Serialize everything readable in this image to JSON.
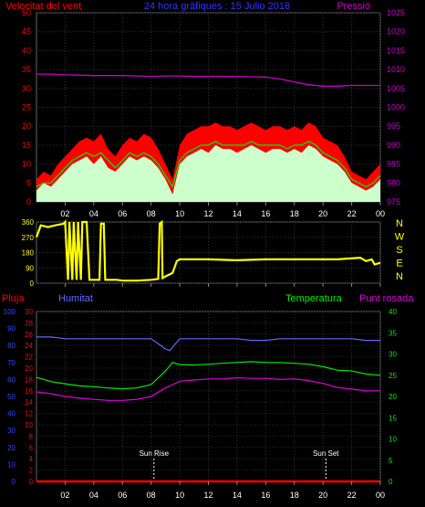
{
  "chart_data": [
    {
      "type": "line",
      "title": "24 hora gràfiques : 15 Julio 2018",
      "left_label": "Velocitat del vent",
      "right_label": "Pressió",
      "x_ticks": [
        "02",
        "04",
        "06",
        "08",
        "10",
        "12",
        "14",
        "16",
        "18",
        "20",
        "22",
        "00"
      ],
      "xlim": [
        0,
        24
      ],
      "ylim_left": [
        0,
        50
      ],
      "ylim_right": [
        975,
        1025
      ],
      "yticks_left": [
        0,
        5,
        10,
        15,
        20,
        25,
        30,
        35,
        40,
        45,
        50
      ],
      "yticks_right": [
        975,
        980,
        985,
        990,
        995,
        1000,
        1005,
        1010,
        1015,
        1020,
        1025
      ],
      "colors": {
        "gust": "#ff0000",
        "average": "#00ee00",
        "speed": "#ccffcc",
        "pressure": "#cc00cc",
        "left_axis": "#ff0000",
        "right_axis": "#cc00cc",
        "title": "#3333ff"
      },
      "series": [
        {
          "axis": "left",
          "x": [
            0,
            0.5,
            1,
            1.5,
            2,
            2.5,
            3,
            3.5,
            4,
            4.5,
            5,
            5.5,
            6,
            6.5,
            7,
            7.5,
            8,
            8.5,
            9,
            9.5,
            10,
            10.5,
            11,
            11.5,
            12,
            12.5,
            13,
            13.5,
            14,
            14.5,
            15,
            15.5,
            16,
            16.5,
            17,
            17.5,
            18,
            18.5,
            19,
            19.5,
            20,
            20.5,
            21,
            21.5,
            22,
            22.5,
            23,
            23.5,
            24
          ],
          "values": [
            6,
            8,
            7,
            10,
            12,
            14,
            16,
            17,
            16,
            18,
            14,
            12,
            15,
            17,
            16,
            18,
            17,
            14,
            10,
            6,
            15,
            18,
            19,
            20,
            20,
            21,
            20,
            20,
            19,
            20,
            21,
            20,
            19,
            20,
            20,
            19,
            20,
            19,
            21,
            20,
            17,
            16,
            15,
            12,
            8,
            7,
            6,
            8,
            10
          ]
        },
        {
          "axis": "left",
          "x": [
            0,
            0.5,
            1,
            1.5,
            2,
            2.5,
            3,
            3.5,
            4,
            4.5,
            5,
            5.5,
            6,
            6.5,
            7,
            7.5,
            8,
            8.5,
            9,
            9.5,
            10,
            10.5,
            11,
            11.5,
            12,
            12.5,
            13,
            13.5,
            14,
            14.5,
            15,
            15.5,
            16,
            16.5,
            17,
            17.5,
            18,
            18.5,
            19,
            19.5,
            20,
            20.5,
            21,
            21.5,
            22,
            22.5,
            23,
            23.5,
            24
          ],
          "values": [
            4,
            5,
            5,
            7,
            9,
            11,
            12,
            13,
            12,
            13,
            11,
            9,
            11,
            13,
            12,
            13,
            12,
            10,
            7,
            4,
            11,
            13,
            14,
            15,
            15,
            16,
            15,
            15,
            15,
            15,
            16,
            15,
            15,
            15,
            15,
            14,
            15,
            15,
            16,
            15,
            13,
            12,
            11,
            9,
            6,
            5,
            4,
            5,
            7
          ]
        },
        {
          "axis": "left",
          "x": [
            0,
            0.5,
            1,
            1.5,
            2,
            2.5,
            3,
            3.5,
            4,
            4.5,
            5,
            5.5,
            6,
            6.5,
            7,
            7.5,
            8,
            8.5,
            9,
            9.5,
            10,
            10.5,
            11,
            11.5,
            12,
            12.5,
            13,
            13.5,
            14,
            14.5,
            15,
            15.5,
            16,
            16.5,
            17,
            17.5,
            18,
            18.5,
            19,
            19.5,
            20,
            20.5,
            21,
            21.5,
            22,
            22.5,
            23,
            23.5,
            24
          ],
          "values": [
            3,
            5,
            4,
            6,
            8,
            10,
            11,
            12,
            10,
            12,
            9,
            8,
            10,
            12,
            11,
            12,
            11,
            9,
            6,
            2,
            10,
            12,
            13,
            14,
            13,
            15,
            14,
            14,
            13,
            14,
            15,
            14,
            13,
            14,
            14,
            13,
            14,
            13,
            15,
            14,
            12,
            11,
            10,
            8,
            5,
            4,
            3,
            4,
            6
          ]
        },
        {
          "axis": "right",
          "x": [
            0,
            1,
            2,
            3,
            4,
            5,
            6,
            7,
            8,
            9,
            10,
            11,
            12,
            13,
            14,
            15,
            16,
            17,
            18,
            19,
            20,
            21,
            22,
            23,
            24
          ],
          "values": [
            1008.8,
            1008.8,
            1008.6,
            1008.5,
            1008.4,
            1008.4,
            1008.4,
            1008.3,
            1008.2,
            1008.3,
            1008.3,
            1008.2,
            1008.2,
            1008.2,
            1008.2,
            1008.1,
            1008.0,
            1007.5,
            1006.7,
            1006.0,
            1005.6,
            1005.6,
            1005.8,
            1005.8,
            1005.8
          ]
        }
      ]
    },
    {
      "type": "line",
      "title": "",
      "x_ticks": [
        "02",
        "04",
        "06",
        "08",
        "10",
        "12",
        "14",
        "16",
        "18",
        "20",
        "22",
        "00"
      ],
      "xlim": [
        0,
        24
      ],
      "ylim": [
        0,
        360
      ],
      "yticks": [
        0,
        90,
        180,
        270,
        360
      ],
      "compass_labels": [
        "N",
        "W",
        "S",
        "E",
        "N"
      ],
      "colors": {
        "direction": "#ffff00",
        "compass": "#ffff00",
        "axis": "#ffff00"
      },
      "series": [
        {
          "x": [
            0,
            0.3,
            0.8,
            1.3,
            1.9,
            2.0,
            2.2,
            2.3,
            2.5,
            2.6,
            2.8,
            2.9,
            3.1,
            3.2,
            3.5,
            3.7,
            3.9,
            4.4,
            4.5,
            4.7,
            4.8,
            5.0,
            5.6,
            6.0,
            7.0,
            8.0,
            8.5,
            8.6,
            8.75,
            8.8,
            9.0,
            9.5,
            9.8,
            10,
            12,
            14,
            16,
            18,
            20,
            21,
            22.6,
            23,
            23.4,
            23.6,
            24
          ],
          "values": [
            270,
            340,
            330,
            340,
            350,
            360,
            20,
            360,
            20,
            360,
            20,
            360,
            20,
            360,
            360,
            20,
            20,
            20,
            350,
            350,
            20,
            20,
            20,
            15,
            15,
            20,
            25,
            350,
            360,
            30,
            40,
            60,
            130,
            140,
            140,
            135,
            140,
            140,
            140,
            140,
            150,
            130,
            140,
            110,
            120
          ]
        }
      ]
    },
    {
      "type": "line",
      "title": "",
      "x_ticks": [
        "02",
        "04",
        "06",
        "08",
        "10",
        "12",
        "14",
        "16",
        "18",
        "20",
        "22",
        "00"
      ],
      "xlim": [
        0,
        24
      ],
      "axis_labels": [
        "Pluja",
        "Humitat",
        "Temperatura",
        "Punt rosada"
      ],
      "ylim_rain": [
        0,
        100
      ],
      "yticks_rain": [
        0,
        10,
        20,
        30,
        40,
        50,
        60,
        70,
        80,
        90,
        100
      ],
      "ylim_humidity": [
        0,
        100
      ],
      "yticks_humidity": [
        0,
        10,
        20,
        30,
        40,
        50,
        60,
        70,
        80,
        90,
        100
      ],
      "ylim_dewpoint": [
        0,
        30
      ],
      "yticks_dewpoint": [
        0,
        2,
        4,
        6,
        8,
        10,
        12,
        14,
        16,
        18,
        20,
        22,
        24,
        26,
        28,
        30
      ],
      "ylim_temperature": [
        0,
        40
      ],
      "yticks_temperature": [
        0,
        5,
        10,
        15,
        20,
        25,
        30,
        35,
        40
      ],
      "annotations": [
        {
          "label": "Sun Rise",
          "x": 8.2
        },
        {
          "label": "Sun Set",
          "x": 20.2
        }
      ],
      "colors": {
        "rain": "#ff0000",
        "humidity": "#6666ff",
        "temperature": "#00ee00",
        "dewpoint": "#dd00dd",
        "rain_axis": "#3344ff",
        "dew_axis": "#ff0000",
        "temp_axis": "#00ee00",
        "annotation": "#ffffff"
      },
      "series": [
        {
          "axis": "rain",
          "x": [
            0,
            24
          ],
          "values": [
            0,
            0
          ]
        },
        {
          "axis": "humidity",
          "x": [
            0,
            1,
            2,
            3,
            4,
            5,
            6,
            7,
            8,
            8.5,
            9,
            9.3,
            9.6,
            10,
            11,
            12,
            13,
            14,
            15,
            16,
            17,
            18,
            19,
            20,
            21,
            22,
            23,
            24
          ],
          "values": [
            85,
            85,
            84,
            84,
            84,
            84,
            84,
            84,
            84,
            81,
            78,
            77,
            80,
            84,
            84,
            84,
            84,
            84,
            83,
            83,
            84,
            84,
            84,
            84,
            84,
            84,
            83,
            83
          ]
        },
        {
          "axis": "temperature",
          "x": [
            0,
            1,
            2,
            3,
            4,
            5,
            6,
            7,
            8,
            9,
            9.5,
            10,
            11,
            12,
            13,
            14,
            15,
            16,
            17,
            18,
            19,
            20,
            21,
            22,
            23,
            24
          ],
          "values": [
            24.5,
            23.5,
            23.0,
            22.5,
            22.3,
            22.0,
            21.8,
            22.0,
            22.8,
            26.0,
            28.0,
            27.5,
            27.4,
            27.6,
            27.8,
            28.0,
            28.2,
            28.0,
            28.0,
            27.8,
            27.6,
            27.0,
            26.2,
            26.0,
            25.3,
            25.0
          ]
        },
        {
          "axis": "dewpoint",
          "x": [
            0,
            1,
            2,
            3,
            4,
            5,
            6,
            7,
            8,
            9,
            10,
            11,
            12,
            13,
            14,
            15,
            16,
            17,
            18,
            19,
            20,
            21,
            22,
            23,
            24
          ],
          "values": [
            15.8,
            15.5,
            15.0,
            14.7,
            14.5,
            14.3,
            14.3,
            14.5,
            15.0,
            16.5,
            17.7,
            17.9,
            18.1,
            18.1,
            18.3,
            18.2,
            18.2,
            18.0,
            18.1,
            17.8,
            17.3,
            16.6,
            16.3,
            16.0,
            16.0
          ]
        }
      ]
    }
  ]
}
